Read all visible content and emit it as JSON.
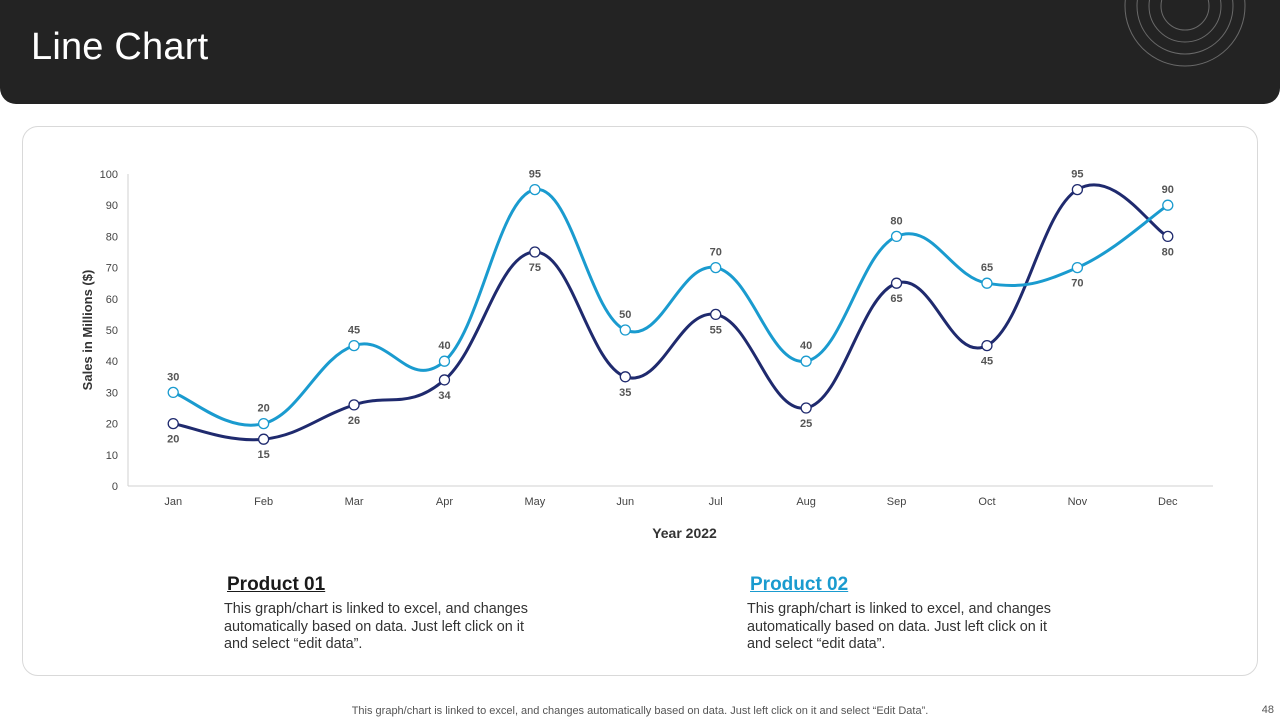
{
  "header": {
    "title": "Line Chart"
  },
  "chart_data": {
    "type": "line",
    "categories": [
      "Jan",
      "Feb",
      "Mar",
      "Apr",
      "May",
      "Jun",
      "Jul",
      "Aug",
      "Sep",
      "Oct",
      "Nov",
      "Dec"
    ],
    "series": [
      {
        "name": "Product 01",
        "color": "#1f2a6e",
        "values": [
          20,
          15,
          26,
          34,
          75,
          35,
          55,
          25,
          65,
          45,
          95,
          80
        ]
      },
      {
        "name": "Product 02",
        "color": "#1a9bcf",
        "values": [
          30,
          20,
          45,
          40,
          95,
          50,
          70,
          40,
          80,
          65,
          70,
          90
        ]
      }
    ],
    "xlabel": "Year 2022",
    "ylabel": "Sales in Millions ($)",
    "ylim": [
      0,
      100
    ],
    "yticks": [
      0,
      10,
      20,
      30,
      40,
      50,
      60,
      70,
      80,
      90,
      100
    ]
  },
  "products": [
    {
      "title": "Product 01",
      "description": "This graph/chart is linked to excel, and changes automatically based on data. Just left click on it and select “edit data”."
    },
    {
      "title": "Product 02",
      "description": "This graph/chart is linked to excel, and changes automatically based on data. Just left click on it and select “edit data”."
    }
  ],
  "footer": {
    "note": "This graph/chart is linked to excel,  and changes automatically based on data. Just left click on it and select “Edit Data”.",
    "page_number": "48"
  }
}
